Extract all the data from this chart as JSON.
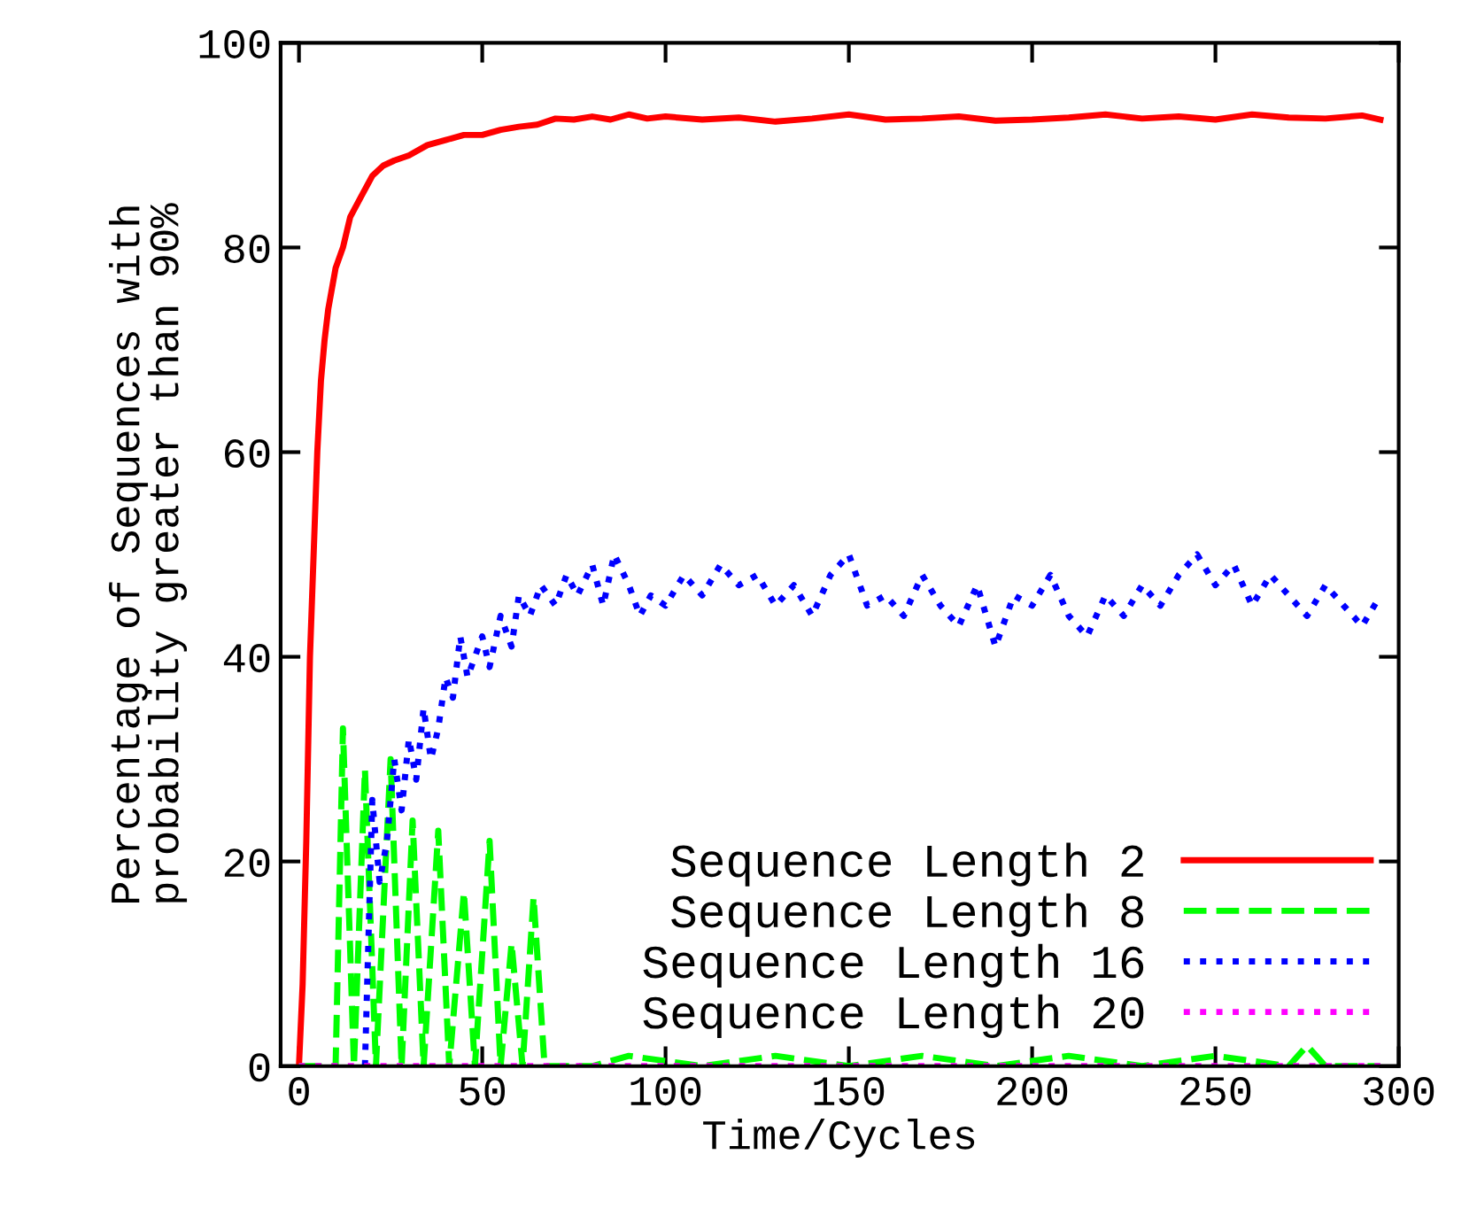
{
  "chart_data": {
    "type": "line",
    "xlabel": "Time/Cycles",
    "ylabel": "Percentage of Sequences with\nprobability greater than 90%",
    "xlim": [
      -5,
      300
    ],
    "ylim": [
      0,
      100
    ],
    "xticks": [
      0,
      50,
      100,
      150,
      200,
      250,
      300
    ],
    "yticks": [
      0,
      20,
      40,
      60,
      80,
      100
    ],
    "grid": false,
    "legend": "bottom right",
    "marker": "none",
    "series": [
      {
        "name": "Sequence Length 2",
        "color": "#ff0000",
        "line_style": "solid",
        "x": [
          0,
          1,
          2,
          3,
          4,
          5,
          6,
          7,
          8,
          10,
          12,
          14,
          17,
          20,
          23,
          26,
          30,
          35,
          40,
          45,
          50,
          55,
          60,
          65,
          70,
          75,
          80,
          85,
          90,
          95,
          100,
          110,
          120,
          130,
          140,
          150,
          160,
          170,
          180,
          190,
          200,
          210,
          220,
          230,
          240,
          250,
          260,
          270,
          280,
          290,
          295
        ],
        "values": [
          0,
          8,
          22,
          40,
          50,
          60,
          67,
          71,
          74,
          78,
          80,
          83,
          85,
          87,
          88,
          88.5,
          89,
          90,
          90.5,
          91,
          91,
          91.5,
          91.8,
          92,
          92.6,
          92.5,
          92.8,
          92.5,
          93,
          92.6,
          92.8,
          92.5,
          92.7,
          92.3,
          92.6,
          93,
          92.5,
          92.6,
          92.8,
          92.4,
          92.5,
          92.7,
          93,
          92.6,
          92.8,
          92.5,
          93,
          92.7,
          92.6,
          92.9,
          92.5
        ]
      },
      {
        "name": "Sequence Length 8",
        "color": "#00ff00",
        "line_style": "dashed",
        "x": [
          0,
          8,
          10,
          12,
          15,
          18,
          21,
          25,
          28,
          31,
          34,
          38,
          41,
          45,
          48,
          52,
          55,
          58,
          61,
          64,
          67,
          80,
          90,
          110,
          130,
          150,
          170,
          190,
          210,
          230,
          250,
          270,
          275,
          280,
          295
        ],
        "values": [
          0,
          0,
          0,
          33,
          0,
          29,
          0,
          30,
          0,
          24,
          0,
          23,
          0,
          17,
          0,
          22,
          0,
          12,
          0,
          16.5,
          0,
          0,
          1,
          0,
          1,
          0,
          1,
          0,
          1,
          0,
          1,
          0,
          2,
          0,
          0
        ]
      },
      {
        "name": "Sequence Length 16",
        "color": "#0000ff",
        "line_style": "dotted",
        "x": [
          18,
          20,
          22,
          24,
          26,
          28,
          30,
          32,
          34,
          36,
          38,
          40,
          42,
          44,
          46,
          48,
          50,
          52,
          55,
          58,
          60,
          63,
          66,
          70,
          73,
          76,
          80,
          83,
          86,
          90,
          93,
          96,
          100,
          105,
          110,
          115,
          120,
          125,
          130,
          135,
          140,
          145,
          150,
          155,
          160,
          165,
          170,
          175,
          180,
          185,
          190,
          195,
          200,
          205,
          210,
          215,
          220,
          225,
          230,
          235,
          240,
          245,
          250,
          255,
          260,
          265,
          270,
          275,
          280,
          285,
          290,
          295
        ],
        "values": [
          0,
          26,
          18,
          22,
          30,
          25,
          32,
          28,
          35,
          30,
          33,
          38,
          36,
          42,
          38,
          40,
          42,
          39,
          44,
          41,
          46,
          44,
          47,
          45,
          48,
          46,
          49,
          45,
          50,
          47,
          44,
          46,
          45,
          48,
          46,
          49,
          47,
          48,
          45,
          47,
          44,
          48,
          50,
          45,
          46,
          44,
          48,
          45,
          43,
          47,
          41,
          46,
          45,
          48,
          44,
          42,
          46,
          44,
          47,
          45,
          48,
          50,
          47,
          49,
          45,
          48,
          46,
          44,
          47,
          45,
          43,
          46
        ]
      },
      {
        "name": "Sequence Length 20",
        "color": "#ff00ff",
        "line_style": "dotted",
        "x": [
          0,
          295
        ],
        "values": [
          0,
          0
        ]
      }
    ]
  }
}
